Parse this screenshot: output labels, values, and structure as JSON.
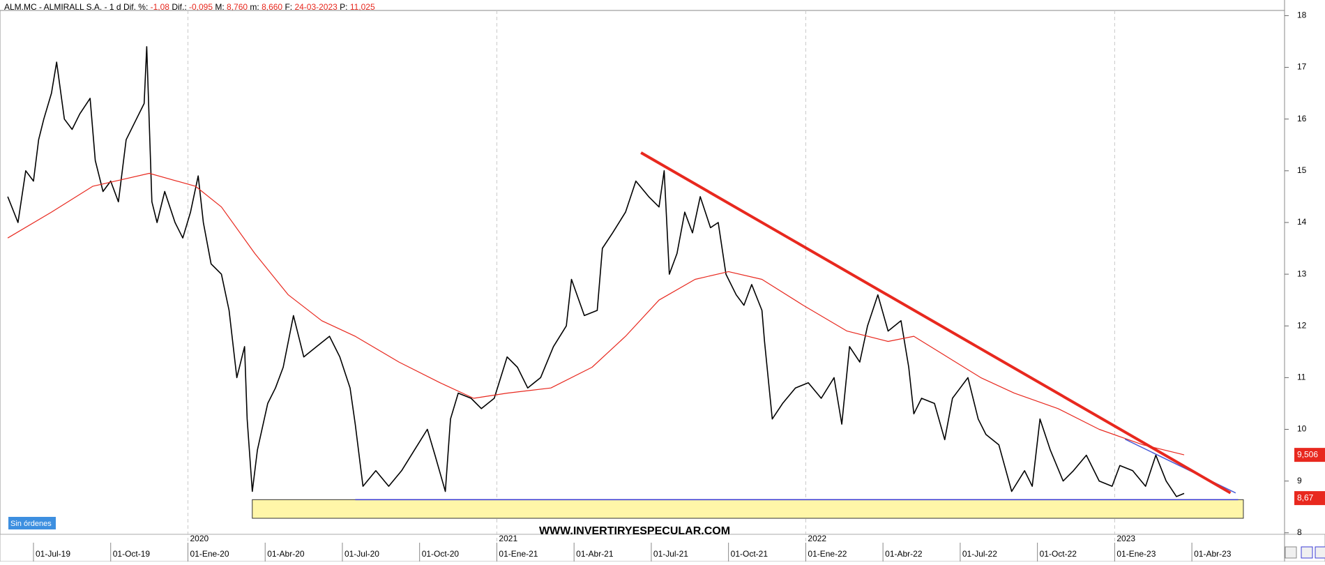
{
  "chart_data": {
    "type": "line",
    "header": {
      "symbol": "ALM.MC - ALMIRALL S.A. -  1 d",
      "fields": [
        {
          "label": "Dif. %:",
          "value": "-1,08"
        },
        {
          "label": "Dif.:",
          "value": "-0,095"
        },
        {
          "label": "M:",
          "value": "8,760"
        },
        {
          "label": "m:",
          "value": "8,660"
        },
        {
          "label": "F:",
          "value": "24-03-2023"
        },
        {
          "label": "P:",
          "value": "11,025"
        }
      ]
    },
    "watermark": "WWW.INVERTIRYESPECULAR.COM",
    "status": "Sin órdenes",
    "xlim": [
      -1.3,
      48.6
    ],
    "ylim": [
      7.97,
      18.1
    ],
    "yticks": [
      8,
      9,
      10,
      11,
      12,
      13,
      14,
      15,
      16,
      17,
      18
    ],
    "xticks": [
      {
        "value": 0,
        "label": "01-Jul-19"
      },
      {
        "value": 3,
        "label": "01-Oct-19"
      },
      {
        "value": 6,
        "label": "01-Ene-20"
      },
      {
        "value": 9,
        "label": "01-Abr-20"
      },
      {
        "value": 12,
        "label": "01-Jul-20"
      },
      {
        "value": 15,
        "label": "01-Oct-20"
      },
      {
        "value": 18,
        "label": "01-Ene-21"
      },
      {
        "value": 21,
        "label": "01-Abr-21"
      },
      {
        "value": 24,
        "label": "01-Jul-21"
      },
      {
        "value": 27,
        "label": "01-Oct-21"
      },
      {
        "value": 30,
        "label": "01-Ene-22"
      },
      {
        "value": 33,
        "label": "01-Abr-22"
      },
      {
        "value": 36,
        "label": "01-Jul-22"
      },
      {
        "value": 39,
        "label": "01-Oct-22"
      },
      {
        "value": 42,
        "label": "01-Ene-23"
      },
      {
        "value": 45,
        "label": "01-Abr-23"
      }
    ],
    "year_markers": [
      {
        "value": 6,
        "label": "2020"
      },
      {
        "value": 18,
        "label": "2021"
      },
      {
        "value": 30,
        "label": "2022"
      },
      {
        "value": 42,
        "label": "2023"
      }
    ],
    "series": [
      {
        "color": "#000000",
        "x": [
          -1.0,
          -0.6,
          -0.3,
          0.0,
          0.2,
          0.4,
          0.7,
          0.9,
          1.2,
          1.5,
          1.8,
          2.2,
          2.4,
          2.7,
          3.0,
          3.3,
          3.6,
          4.0,
          4.3,
          4.4,
          4.6,
          4.8,
          5.1,
          5.5,
          5.8,
          6.1,
          6.4,
          6.6,
          6.9,
          7.3,
          7.6,
          7.9,
          8.2,
          8.3,
          8.5,
          8.7,
          9.1,
          9.4,
          9.7,
          10.1,
          10.5,
          11.0,
          11.5,
          11.9,
          12.3,
          12.5,
          12.8,
          13.3,
          13.8,
          14.3,
          14.8,
          15.3,
          15.6,
          16.0,
          16.2,
          16.5,
          17.0,
          17.4,
          17.9,
          18.4,
          18.8,
          19.2,
          19.7,
          20.2,
          20.7,
          20.9,
          21.4,
          21.9,
          22.1,
          22.5,
          23.0,
          23.4,
          23.9,
          24.3,
          24.5,
          24.7,
          25.0,
          25.3,
          25.6,
          25.9,
          26.3,
          26.6,
          26.9,
          27.3,
          27.6,
          27.9,
          28.3,
          28.4,
          28.7,
          29.1,
          29.6,
          30.1,
          30.6,
          31.1,
          31.4,
          31.7,
          32.1,
          32.4,
          32.8,
          33.2,
          33.7,
          34.0,
          34.2,
          34.5,
          35.0,
          35.4,
          35.7,
          36.0,
          36.3,
          36.7,
          37.0,
          37.5,
          38.0,
          38.5,
          38.8,
          39.1,
          39.5,
          40.0,
          40.4,
          40.9,
          41.4,
          41.9,
          42.2,
          42.7,
          43.2,
          43.6,
          44.0,
          44.4,
          44.7
        ],
        "values": [
          14.5,
          14.0,
          15.0,
          14.8,
          15.6,
          16.0,
          16.5,
          17.1,
          16.0,
          15.8,
          16.1,
          16.4,
          15.2,
          14.6,
          14.8,
          14.4,
          15.6,
          16.0,
          16.3,
          17.4,
          14.4,
          14.0,
          14.6,
          14.0,
          13.7,
          14.2,
          14.9,
          14.0,
          13.2,
          13.0,
          12.3,
          11.0,
          11.6,
          10.2,
          8.8,
          9.6,
          10.5,
          10.8,
          11.2,
          12.2,
          11.4,
          11.6,
          11.8,
          11.4,
          10.8,
          10.1,
          8.9,
          9.2,
          8.9,
          9.2,
          9.6,
          10.0,
          9.5,
          8.8,
          10.2,
          10.7,
          10.6,
          10.4,
          10.6,
          11.4,
          11.2,
          10.8,
          11.0,
          11.6,
          12.0,
          12.9,
          12.2,
          12.3,
          13.5,
          13.8,
          14.2,
          14.8,
          14.5,
          14.3,
          15.0,
          13.0,
          13.4,
          14.2,
          13.8,
          14.5,
          13.9,
          14.0,
          13.0,
          12.6,
          12.4,
          12.8,
          12.3,
          11.7,
          10.2,
          10.5,
          10.8,
          10.9,
          10.6,
          11.0,
          10.1,
          11.6,
          11.3,
          12.0,
          12.6,
          11.9,
          12.1,
          11.2,
          10.3,
          10.6,
          10.5,
          9.8,
          10.6,
          10.8,
          11.0,
          10.2,
          9.9,
          9.7,
          8.8,
          9.2,
          8.9,
          10.2,
          9.6,
          9.0,
          9.2,
          9.5,
          9.0,
          8.9,
          9.3,
          9.2,
          8.9,
          9.5,
          9.0,
          8.7,
          8.76
        ]
      },
      {
        "color": "#e8281e",
        "x": [
          -1.0,
          0.7,
          2.3,
          4.5,
          6.3,
          7.3,
          8.6,
          9.9,
          11.2,
          12.5,
          14.2,
          15.8,
          17.1,
          18.4,
          20.1,
          21.7,
          23.0,
          24.3,
          25.7,
          27.0,
          28.3,
          29.9,
          31.6,
          33.2,
          34.2,
          35.5,
          36.8,
          38.1,
          39.8,
          41.4,
          43.1,
          44.7
        ],
        "values": [
          13.7,
          14.2,
          14.7,
          14.95,
          14.7,
          14.3,
          13.4,
          12.6,
          12.1,
          11.8,
          11.3,
          10.9,
          10.6,
          10.7,
          10.8,
          11.2,
          11.8,
          12.5,
          12.9,
          13.05,
          12.9,
          12.4,
          11.9,
          11.7,
          11.8,
          11.4,
          11.0,
          10.7,
          10.4,
          10.0,
          9.7,
          9.506
        ]
      }
    ],
    "price_labels": [
      {
        "value": 9.506,
        "label": "9,506",
        "color": "#e8281e"
      },
      {
        "value": 8.67,
        "label": "8,67",
        "color": "#e8281e"
      }
    ],
    "trendline": {
      "x": [
        23.6,
        46.5
      ],
      "values": [
        15.35,
        8.77
      ],
      "color": "#e8281e"
    },
    "channel_line": {
      "x": [
        42.4,
        46.7
      ],
      "values": [
        9.81,
        8.77
      ],
      "color": "#4a5cd8"
    },
    "support": {
      "x": [
        12.5,
        46.8
      ],
      "values": [
        8.64,
        8.64
      ],
      "color": "#3b3bd6"
    },
    "zone": {
      "x": [
        8.5,
        47.0
      ],
      "values": [
        8.28,
        8.64
      ],
      "color": "#fff6a8"
    }
  }
}
